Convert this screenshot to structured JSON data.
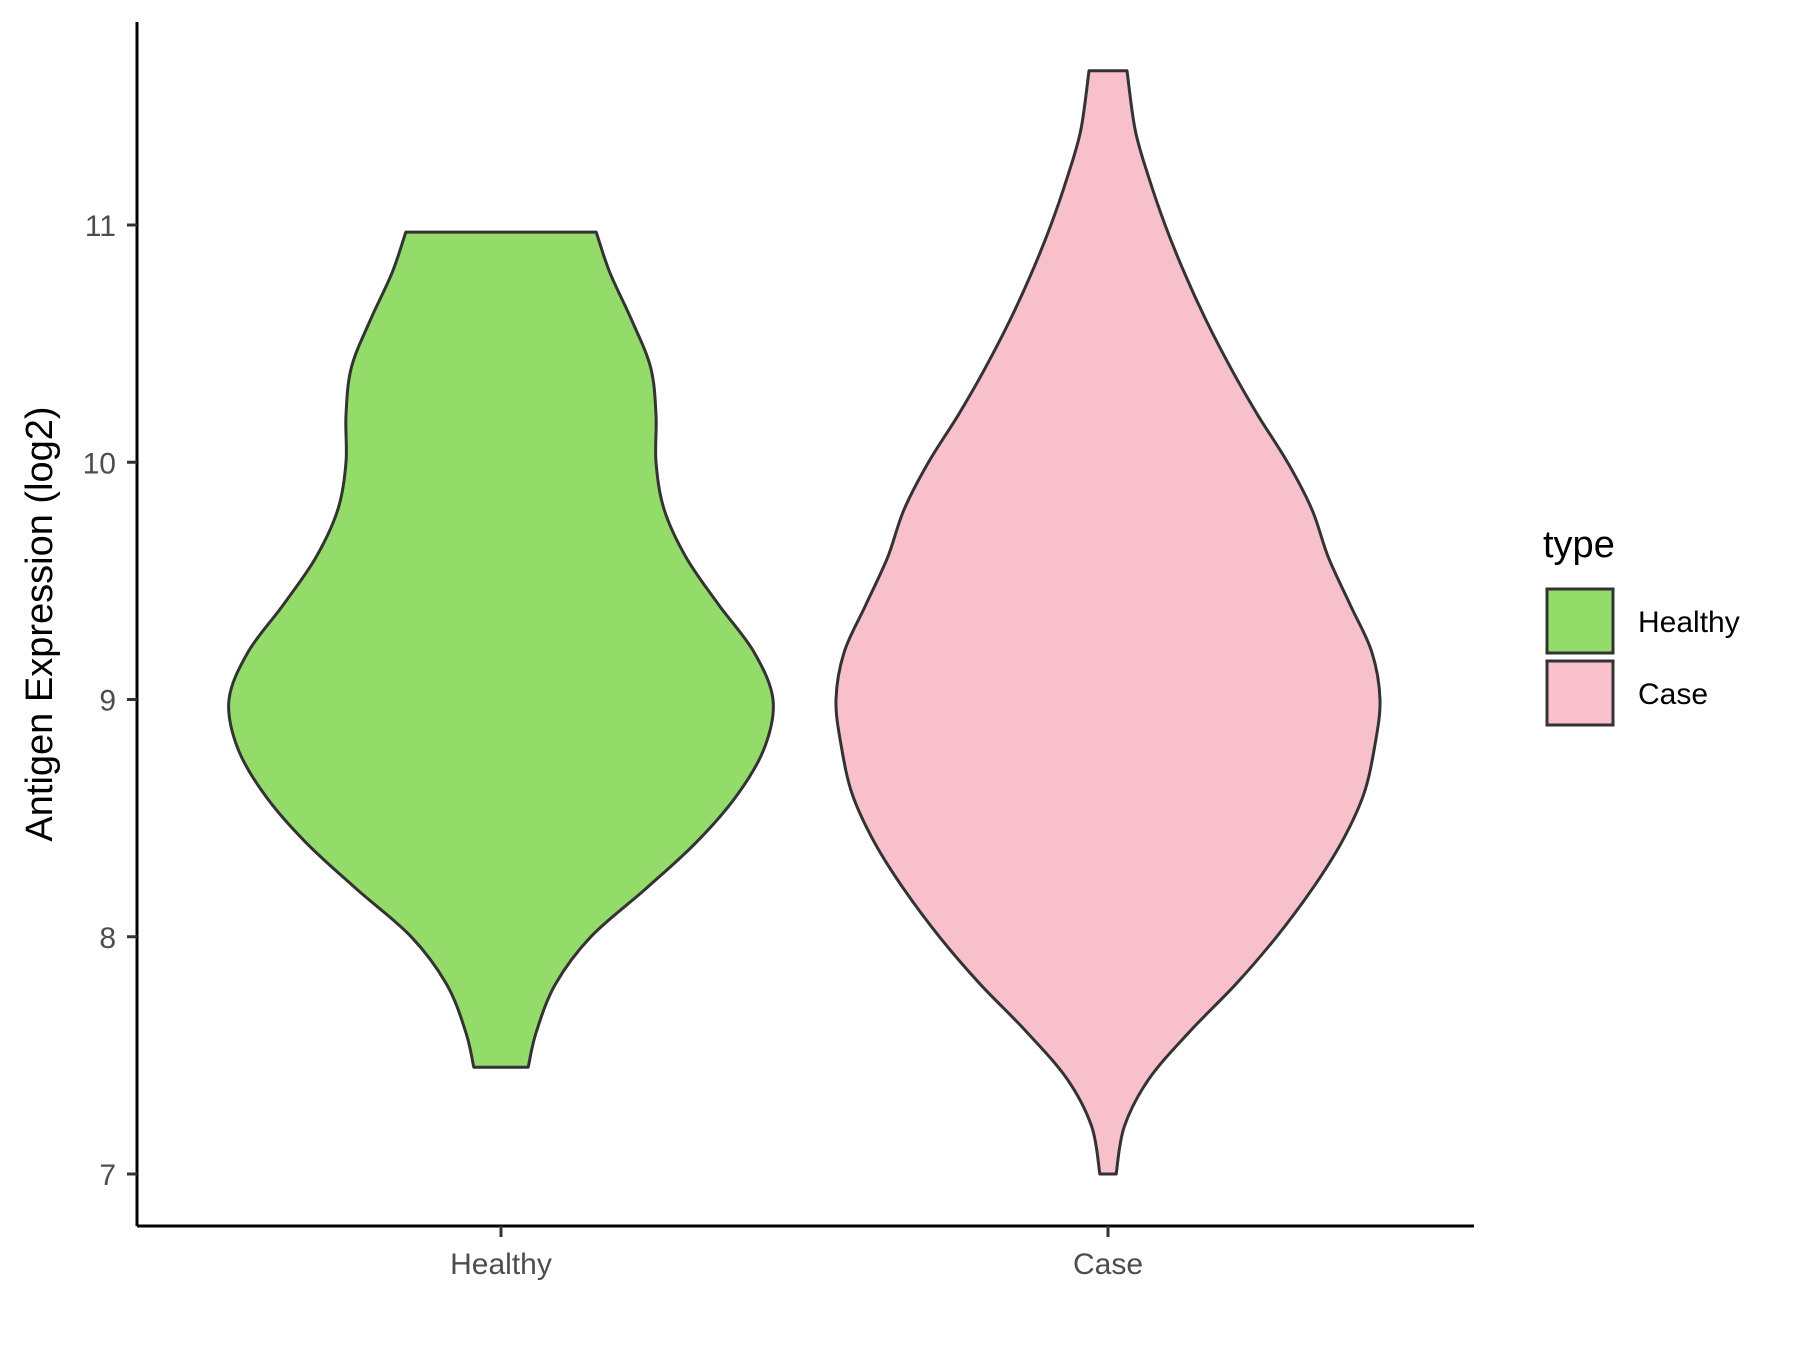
{
  "chart_data": {
    "type": "violin",
    "xlabel": "",
    "ylabel": "Antigen Expression (log2)",
    "categories": [
      "Healthy",
      "Case"
    ],
    "ylim": [
      6.8,
      11.85
    ],
    "yticks": [
      7,
      8,
      9,
      10,
      11
    ],
    "grid": false,
    "legend": {
      "title": "type",
      "position": "right",
      "entries": [
        {
          "label": "Healthy",
          "color": "#93dc6a"
        },
        {
          "label": "Case",
          "color": "#f7c0cb"
        }
      ]
    },
    "series": [
      {
        "category": "Healthy",
        "color": "#93dc6a",
        "min": 7.45,
        "max": 10.97,
        "density": [
          [
            7.45,
            0.1
          ],
          [
            7.6,
            0.13
          ],
          [
            7.8,
            0.2
          ],
          [
            8.0,
            0.33
          ],
          [
            8.2,
            0.53
          ],
          [
            8.4,
            0.72
          ],
          [
            8.6,
            0.87
          ],
          [
            8.8,
            0.97
          ],
          [
            9.0,
            1.0
          ],
          [
            9.2,
            0.93
          ],
          [
            9.4,
            0.8
          ],
          [
            9.6,
            0.68
          ],
          [
            9.8,
            0.6
          ],
          [
            10.0,
            0.57
          ],
          [
            10.2,
            0.57
          ],
          [
            10.4,
            0.55
          ],
          [
            10.6,
            0.48
          ],
          [
            10.8,
            0.4
          ],
          [
            10.97,
            0.35
          ]
        ]
      },
      {
        "category": "Case",
        "color": "#f7c0cb",
        "min": 7.0,
        "max": 11.65,
        "density": [
          [
            7.0,
            0.03
          ],
          [
            7.2,
            0.06
          ],
          [
            7.4,
            0.15
          ],
          [
            7.6,
            0.3
          ],
          [
            7.8,
            0.47
          ],
          [
            8.0,
            0.62
          ],
          [
            8.2,
            0.75
          ],
          [
            8.4,
            0.86
          ],
          [
            8.6,
            0.94
          ],
          [
            8.8,
            0.98
          ],
          [
            9.0,
            1.0
          ],
          [
            9.2,
            0.97
          ],
          [
            9.4,
            0.89
          ],
          [
            9.6,
            0.81
          ],
          [
            9.8,
            0.75
          ],
          [
            10.0,
            0.66
          ],
          [
            10.2,
            0.55
          ],
          [
            10.4,
            0.45
          ],
          [
            10.6,
            0.36
          ],
          [
            10.8,
            0.28
          ],
          [
            11.0,
            0.21
          ],
          [
            11.2,
            0.15
          ],
          [
            11.4,
            0.1
          ],
          [
            11.65,
            0.07
          ]
        ]
      }
    ]
  }
}
